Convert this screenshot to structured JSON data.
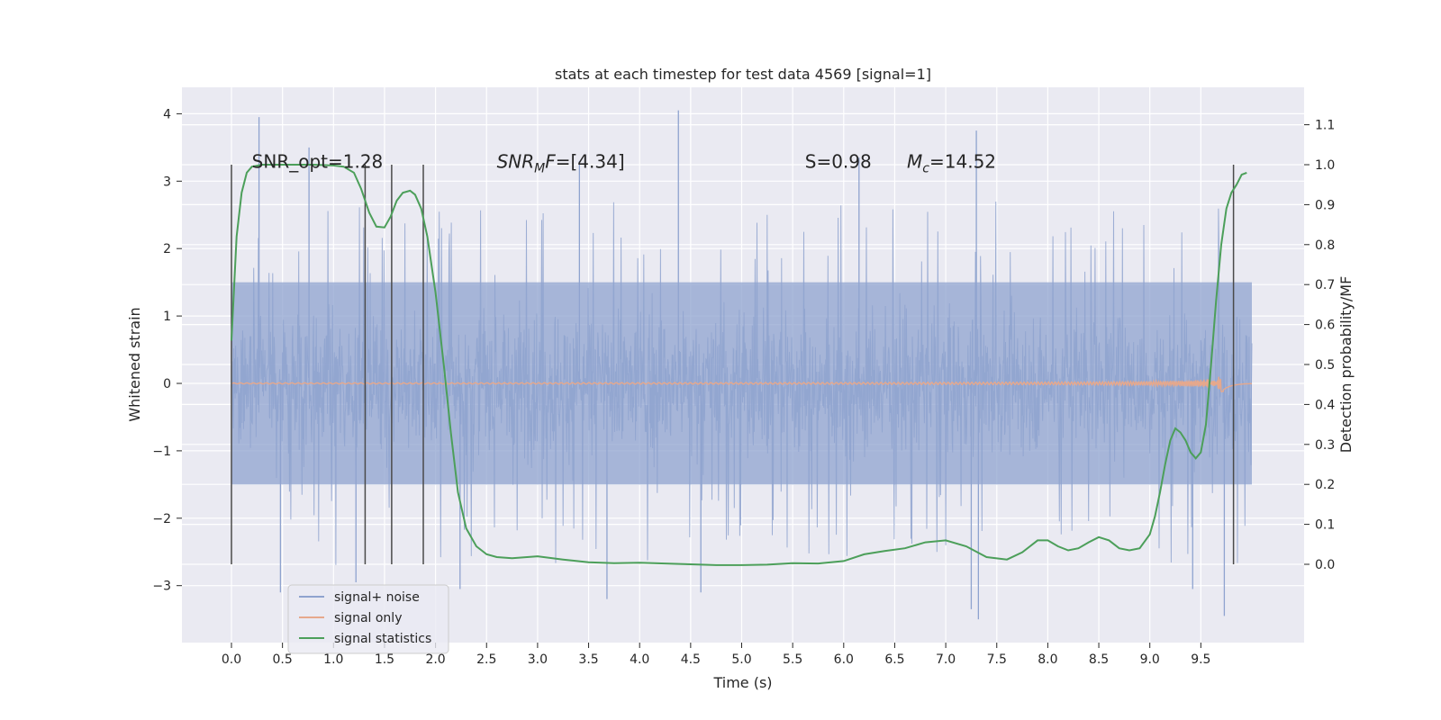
{
  "chart_data": {
    "type": "line",
    "title": "stats at each timestep for test data 4569 [signal=1]",
    "xlabel": "Time (s)",
    "ylabel": "Whitened strain",
    "ylabel_right": "Detection probability/MF",
    "xlim": [
      -0.5,
      10.5
    ],
    "ylim": [
      -3.85,
      4.4
    ],
    "ylim_right": [
      -0.2,
      1.19
    ],
    "x_ticks": [
      0.0,
      0.5,
      1.0,
      1.5,
      2.0,
      2.5,
      3.0,
      3.5,
      4.0,
      4.5,
      5.0,
      5.5,
      6.0,
      6.5,
      7.0,
      7.5,
      8.0,
      8.5,
      9.0,
      9.5
    ],
    "x_tick_labels": [
      "0.0",
      "0.5",
      "1.0",
      "1.5",
      "2.0",
      "2.5",
      "3.0",
      "3.5",
      "4.0",
      "4.5",
      "5.0",
      "5.5",
      "6.0",
      "6.5",
      "7.0",
      "7.5",
      "8.0",
      "8.5",
      "9.0",
      "9.5"
    ],
    "y_ticks": [
      4,
      3,
      2,
      1,
      0,
      -1,
      -2,
      -3
    ],
    "y_tick_labels": [
      "4",
      "3",
      "2",
      "1",
      "0",
      "−1",
      "−2",
      "−3"
    ],
    "y2_ticks": [
      1.1,
      1.0,
      0.9,
      0.8,
      0.7,
      0.6,
      0.5,
      0.4,
      0.3,
      0.2,
      0.1,
      0.0
    ],
    "y2_tick_labels": [
      "1.1",
      "1.0",
      "0.9",
      "0.8",
      "0.7",
      "0.6",
      "0.5",
      "0.4",
      "0.3",
      "0.2",
      "0.1",
      "0.0"
    ],
    "grid": true,
    "legend_position": "lower-left",
    "annotations": [
      {
        "text": "SNR_opt=1.28",
        "x": 0.2,
        "y": 3.2
      },
      {
        "text": "SNR",
        "sub": "M",
        "suffix": "F=[4.34]",
        "x": 2.6,
        "y": 3.2
      },
      {
        "text": "S",
        "suffix": "=0.98",
        "x": 5.62,
        "y": 3.2
      },
      {
        "text": "M",
        "sub": "c",
        "suffix": "=14.52",
        "x": 6.62,
        "y": 3.2
      }
    ],
    "vlines": {
      "x": [
        0.0,
        1.31,
        1.57,
        1.88,
        9.82
      ],
      "ymin": 0.0,
      "ymax": 1.0,
      "color": "#4a4a4a"
    },
    "series": [
      {
        "name": "signal+ noise",
        "color": "#8fa3cf",
        "kind": "noise",
        "t_start": 0.0,
        "t_end": 10.0,
        "envelope_core": 1.5,
        "spike_extremes": [
          {
            "x": 0.27,
            "y": 3.95
          },
          {
            "x": 0.48,
            "y": -3.1
          },
          {
            "x": 0.76,
            "y": 3.5
          },
          {
            "x": 1.22,
            "y": -2.95
          },
          {
            "x": 2.24,
            "y": -3.05
          },
          {
            "x": 3.41,
            "y": 3.3
          },
          {
            "x": 3.68,
            "y": -3.2
          },
          {
            "x": 4.38,
            "y": 4.05
          },
          {
            "x": 4.6,
            "y": -3.1
          },
          {
            "x": 6.15,
            "y": 3.35
          },
          {
            "x": 7.3,
            "y": 3.75
          },
          {
            "x": 7.25,
            "y": -3.35
          },
          {
            "x": 7.32,
            "y": -3.5
          },
          {
            "x": 9.42,
            "y": -3.05
          },
          {
            "x": 9.73,
            "y": -3.45
          }
        ]
      },
      {
        "name": "signal only",
        "color": "#e6a88c",
        "kind": "chirp",
        "t_start": 0.0,
        "t_end": 10.0,
        "merger_time": 9.7,
        "peak_amplitude": 0.12
      },
      {
        "name": "signal statistics",
        "color": "#4c9f5a",
        "axis": "right",
        "x": [
          0.0,
          0.05,
          0.1,
          0.15,
          0.2,
          0.3,
          0.4,
          0.6,
          0.8,
          1.0,
          1.1,
          1.2,
          1.27,
          1.35,
          1.42,
          1.5,
          1.56,
          1.62,
          1.68,
          1.75,
          1.8,
          1.86,
          1.92,
          2.0,
          2.08,
          2.15,
          2.22,
          2.3,
          2.4,
          2.5,
          2.6,
          2.75,
          3.0,
          3.25,
          3.5,
          3.75,
          4.0,
          4.25,
          4.5,
          4.75,
          5.0,
          5.25,
          5.5,
          5.75,
          6.0,
          6.2,
          6.4,
          6.6,
          6.8,
          7.0,
          7.2,
          7.4,
          7.6,
          7.75,
          7.9,
          8.0,
          8.1,
          8.2,
          8.3,
          8.4,
          8.5,
          8.6,
          8.7,
          8.8,
          8.9,
          9.0,
          9.05,
          9.1,
          9.15,
          9.2,
          9.25,
          9.3,
          9.35,
          9.4,
          9.45,
          9.5,
          9.55,
          9.6,
          9.65,
          9.7,
          9.75,
          9.8,
          9.85,
          9.9,
          9.95
        ],
        "values": [
          0.56,
          0.82,
          0.93,
          0.98,
          0.995,
          1.0,
          1.0,
          1.0,
          1.0,
          0.998,
          0.995,
          0.98,
          0.94,
          0.88,
          0.845,
          0.843,
          0.87,
          0.91,
          0.93,
          0.935,
          0.925,
          0.89,
          0.82,
          0.68,
          0.5,
          0.33,
          0.18,
          0.09,
          0.045,
          0.025,
          0.018,
          0.015,
          0.02,
          0.012,
          0.005,
          0.003,
          0.004,
          0.002,
          0.0,
          -0.002,
          -0.002,
          -0.001,
          0.003,
          0.002,
          0.008,
          0.025,
          0.033,
          0.04,
          0.055,
          0.06,
          0.045,
          0.018,
          0.012,
          0.03,
          0.06,
          0.06,
          0.045,
          0.035,
          0.04,
          0.055,
          0.068,
          0.06,
          0.04,
          0.035,
          0.04,
          0.075,
          0.12,
          0.18,
          0.25,
          0.31,
          0.34,
          0.33,
          0.31,
          0.28,
          0.265,
          0.28,
          0.35,
          0.5,
          0.66,
          0.8,
          0.89,
          0.93,
          0.95,
          0.975,
          0.98
        ]
      }
    ]
  }
}
